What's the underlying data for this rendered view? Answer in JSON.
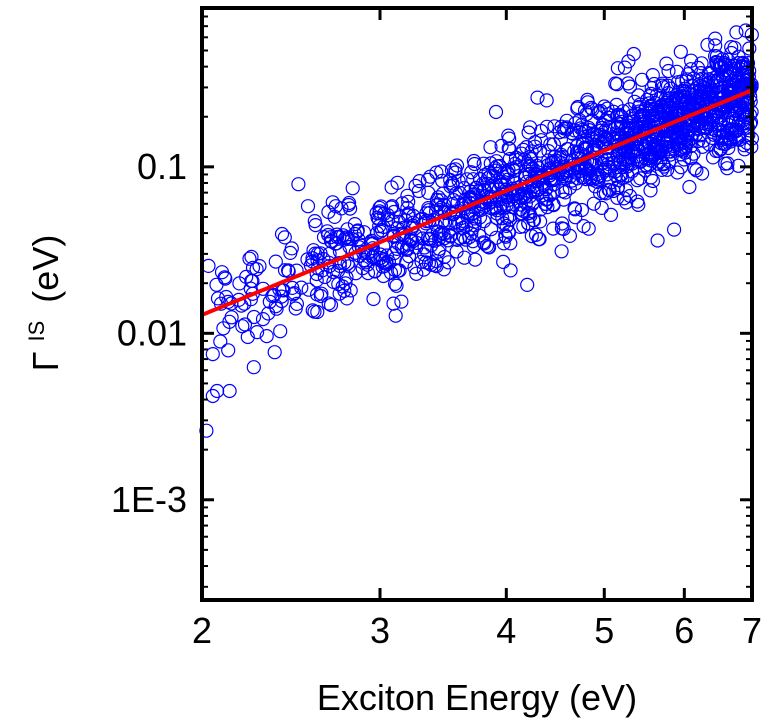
{
  "chart_data": {
    "type": "scatter",
    "xlabel": "Exciton Energy (eV)",
    "ylabel": {
      "symbol": "Γ",
      "superscript": "IS",
      "unit": "(eV)"
    },
    "x_scale": "log",
    "y_scale": "log",
    "xlim": [
      2,
      7
    ],
    "ylim": [
      0.00025,
      0.9
    ],
    "x_ticks": [
      {
        "value": 2,
        "label": "2"
      },
      {
        "value": 3,
        "label": "3"
      },
      {
        "value": 4,
        "label": "4"
      },
      {
        "value": 5,
        "label": "5"
      },
      {
        "value": 6,
        "label": "6"
      },
      {
        "value": 7,
        "label": "7"
      }
    ],
    "y_ticks": [
      {
        "value": 0.001,
        "label": "1E-3"
      },
      {
        "value": 0.01,
        "label": "0.01"
      },
      {
        "value": 0.1,
        "label": "0.1"
      }
    ],
    "grid": false,
    "series": [
      {
        "kind": "scatter",
        "marker": "open-circle",
        "color": "#0000ff",
        "generation": {
          "count": 1500,
          "x_min": 2.0,
          "x_max": 7.0,
          "x_density_exponent": 1.3,
          "trend": {
            "a": 0.0129,
            "b": 2.48,
            "x0": 2
          },
          "log10_spread": 0.16,
          "outliers": [
            {
              "x": 2.02,
              "y": 0.0026
            },
            {
              "x": 2.05,
              "y": 0.0042
            },
            {
              "x": 2.07,
              "y": 0.0045
            },
            {
              "x": 2.05,
              "y": 0.0075
            },
            {
              "x": 2.13,
              "y": 0.0045
            },
            {
              "x": 2.22,
              "y": 0.0095
            },
            {
              "x": 2.36,
              "y": 0.0077
            },
            {
              "x": 2.39,
              "y": 0.0103
            },
            {
              "x": 3.15,
              "y": 0.0155
            }
          ]
        }
      },
      {
        "kind": "line",
        "color": "#ff0000",
        "fit": {
          "a": 0.0129,
          "b": 2.48,
          "x0": 2
        }
      }
    ]
  }
}
